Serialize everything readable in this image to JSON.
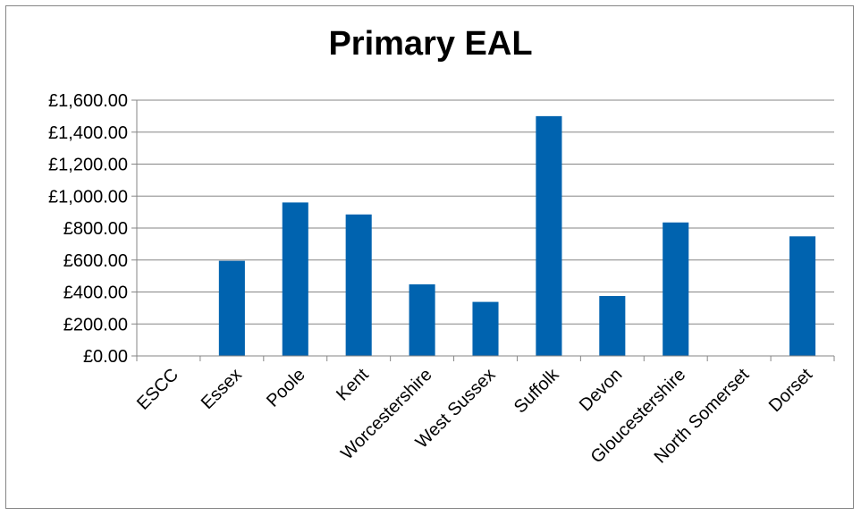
{
  "chart_data": {
    "type": "bar",
    "title": "Primary EAL",
    "xlabel": "",
    "ylabel": "",
    "categories": [
      "ESCC",
      "Essex",
      "Poole",
      "Kent",
      "Worcestershire",
      "West Sussex",
      "Suffolk",
      "Devon",
      "Gloucestershire",
      "North Somerset",
      "Dorset"
    ],
    "values": [
      0,
      595,
      960,
      885,
      448,
      338,
      1500,
      375,
      835,
      0,
      748
    ],
    "ylim": [
      0,
      1600
    ],
    "yticks": [
      0,
      200,
      400,
      600,
      800,
      1000,
      1200,
      1400,
      1600
    ],
    "ytick_labels": [
      "£0.00",
      "£200.00",
      "£400.00",
      "£600.00",
      "£800.00",
      "£1,000.00",
      "£1,200.00",
      "£1,400.00",
      "£1,600.00"
    ],
    "bar_color": "#0063AF",
    "grid": true,
    "legend": "none"
  }
}
